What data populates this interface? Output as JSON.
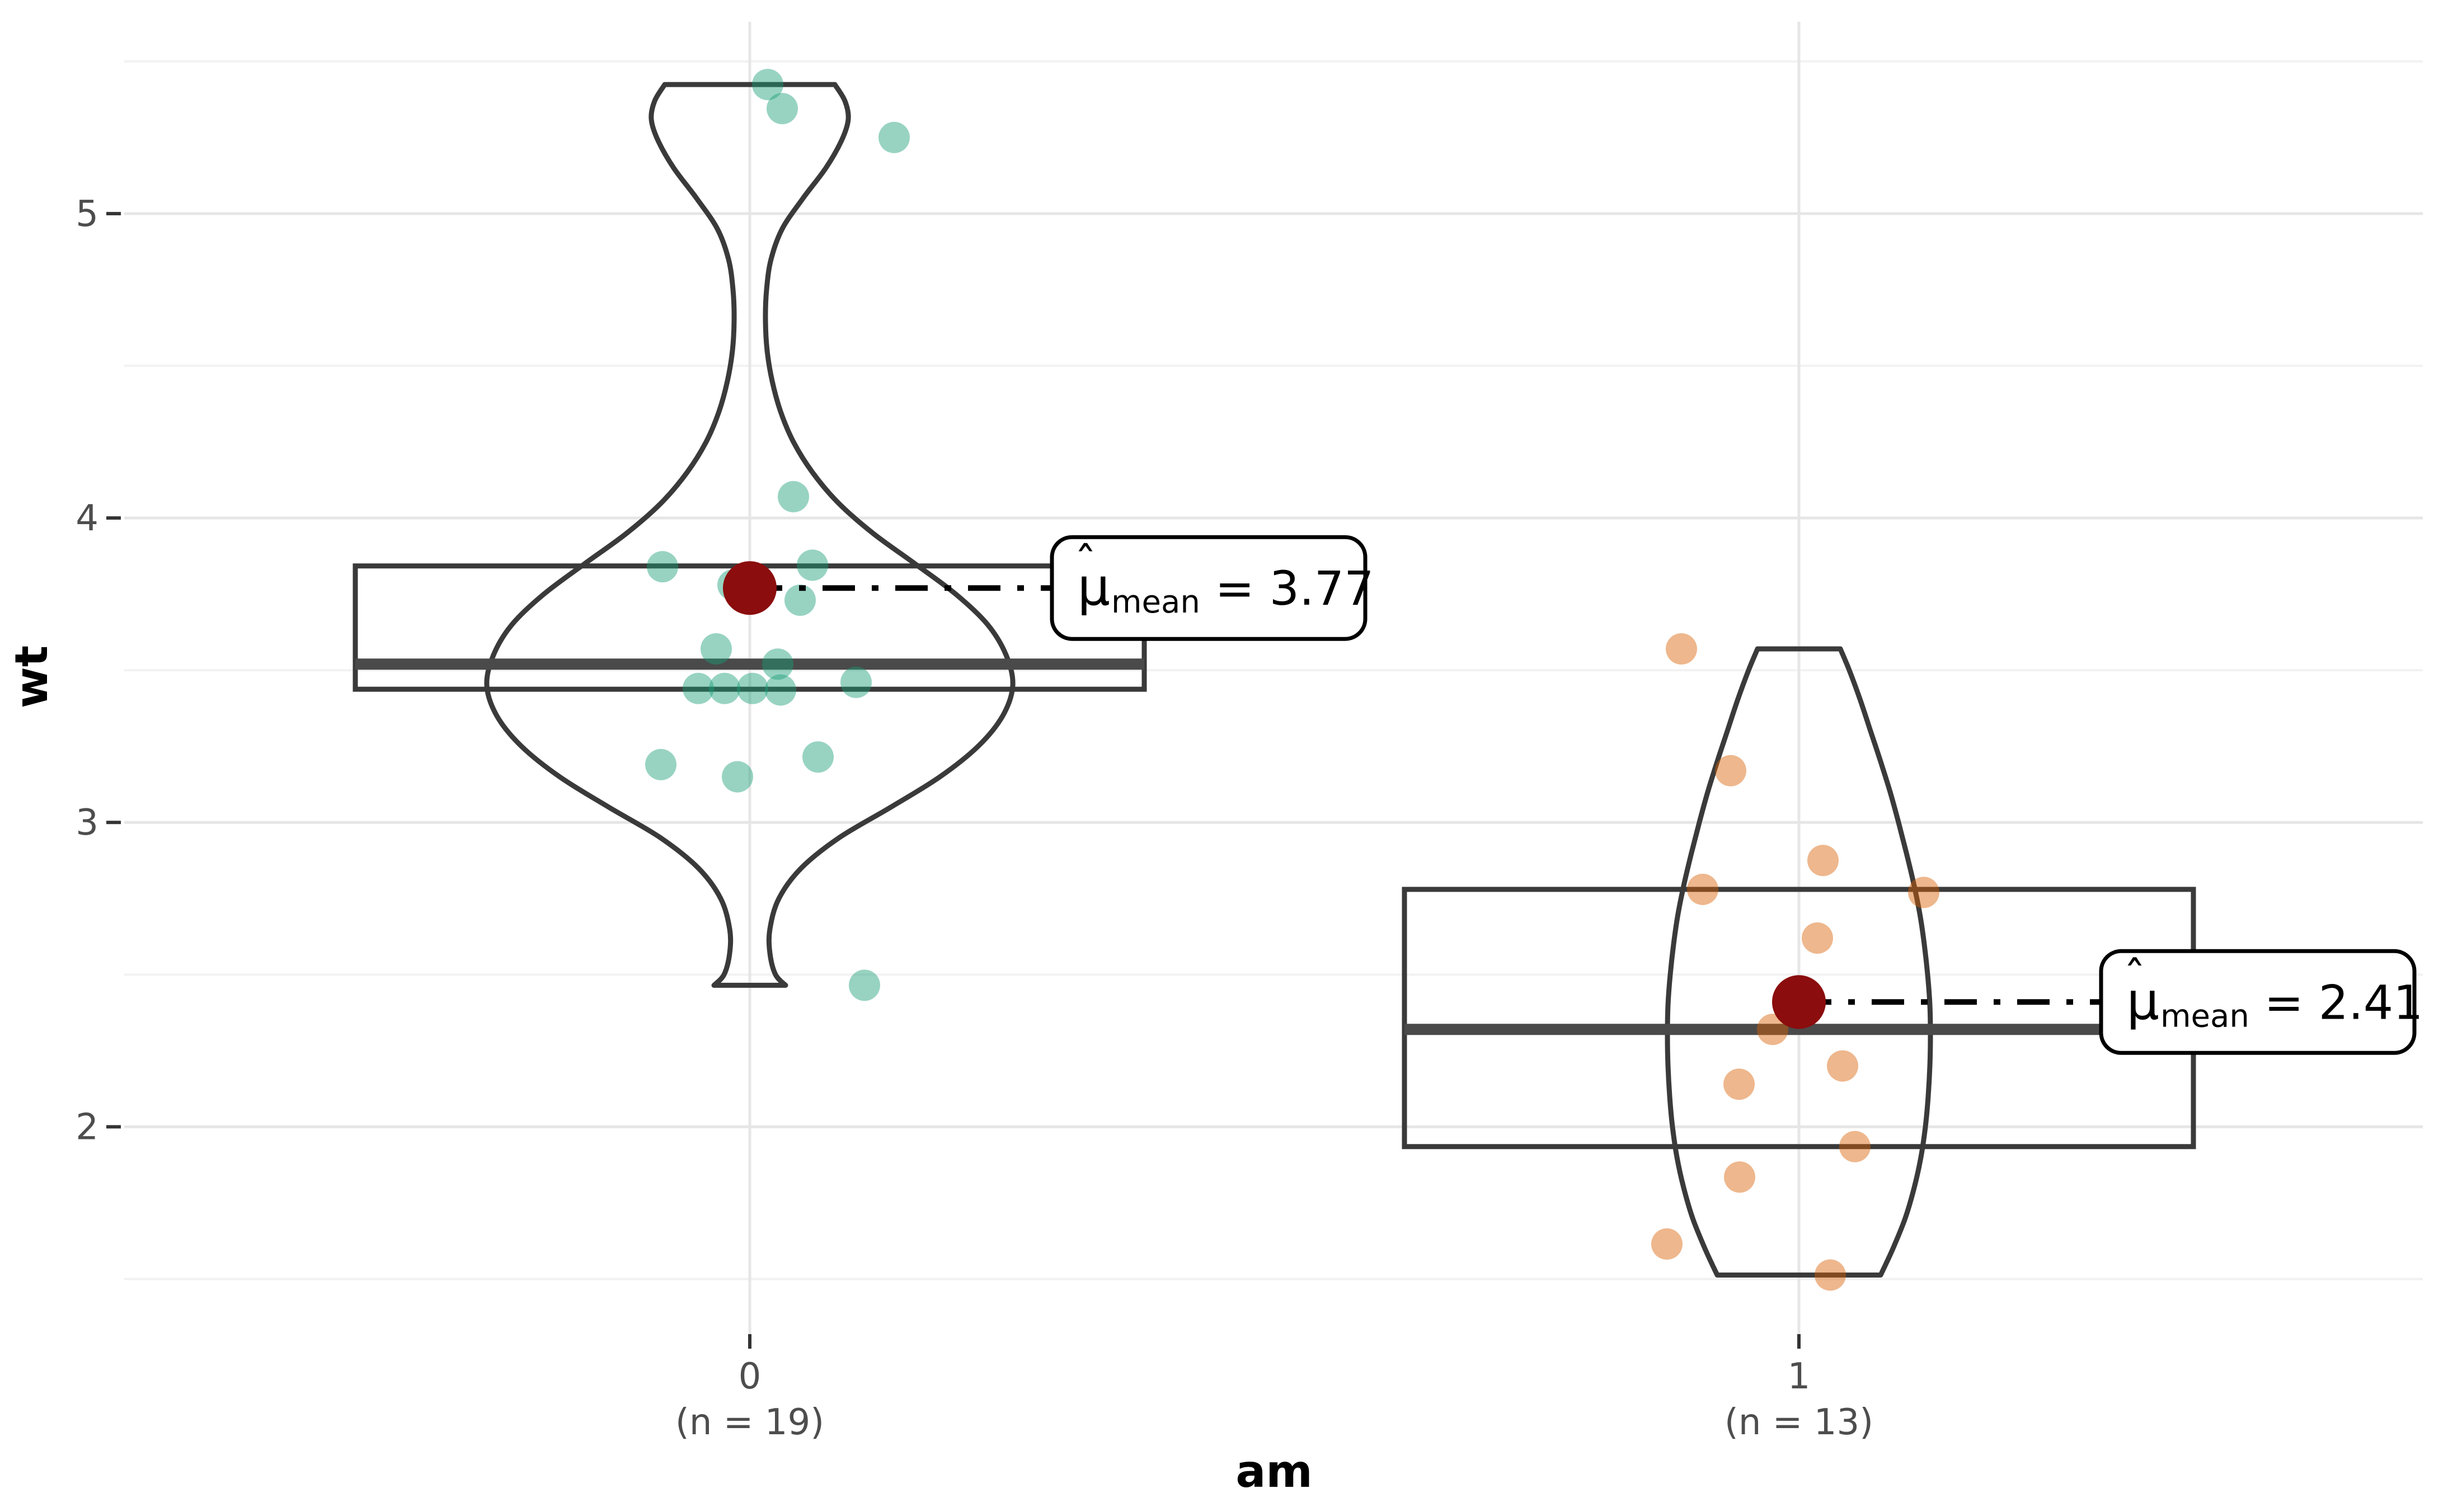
{
  "chart_data": {
    "type": "violin",
    "variant": "violin + boxplot + jittered points with mean labels (ggbetweenstats style)",
    "title": "",
    "xlabel": "am",
    "ylabel": "wt",
    "grid": true,
    "legend": "none",
    "x_categories": [
      {
        "label": "0",
        "sublabel": "(n = 19)"
      },
      {
        "label": "1",
        "sublabel": "(n = 13)"
      }
    ],
    "y_axis": {
      "major_ticks": [
        5,
        4,
        3,
        2
      ],
      "minor_ticks": [
        5.5,
        4.5,
        3.5,
        2.5,
        1.5
      ],
      "ylim": [
        1.319,
        5.63
      ]
    },
    "groups": [
      {
        "category": "0",
        "n": 19,
        "values": [
          5.424,
          5.345,
          5.25,
          4.07,
          3.845,
          3.84,
          3.78,
          3.73,
          3.57,
          3.52,
          3.46,
          3.44,
          3.44,
          3.44,
          3.435,
          3.215,
          3.19,
          3.15,
          2.465
        ],
        "jitter_dx": [
          32,
          58,
          258,
          78,
          112,
          -156,
          -30,
          90,
          -60,
          50,
          190,
          -45,
          5,
          -92,
          55,
          122,
          -159,
          -22,
          205
        ],
        "box": {
          "q1": 3.4375,
          "median": 3.52,
          "q3": 3.8425
        },
        "mean": 3.77,
        "mean_label": {
          "mu": "μ",
          "hat": "ˆ",
          "sub": "mean",
          "rest": " = 3.77"
        },
        "point_color": "#1B9E77",
        "violin_min": 2.465,
        "violin_max": 5.424,
        "violin_profile": [
          [
            5.424,
            152
          ],
          [
            5.37,
            170
          ],
          [
            5.31,
            176
          ],
          [
            5.24,
            164
          ],
          [
            5.15,
            136
          ],
          [
            5.05,
            95
          ],
          [
            4.95,
            58
          ],
          [
            4.85,
            38
          ],
          [
            4.75,
            30
          ],
          [
            4.65,
            28
          ],
          [
            4.55,
            31
          ],
          [
            4.45,
            40
          ],
          [
            4.35,
            55
          ],
          [
            4.25,
            78
          ],
          [
            4.15,
            112
          ],
          [
            4.05,
            158
          ],
          [
            3.95,
            220
          ],
          [
            3.85,
            295
          ],
          [
            3.75,
            368
          ],
          [
            3.65,
            425
          ],
          [
            3.55,
            458
          ],
          [
            3.45,
            470
          ],
          [
            3.35,
            452
          ],
          [
            3.25,
            408
          ],
          [
            3.15,
            340
          ],
          [
            3.05,
            252
          ],
          [
            2.95,
            160
          ],
          [
            2.85,
            92
          ],
          [
            2.75,
            52
          ],
          [
            2.65,
            36
          ],
          [
            2.57,
            36
          ],
          [
            2.5,
            46
          ],
          [
            2.465,
            64
          ]
        ]
      },
      {
        "category": "1",
        "n": 13,
        "values": [
          3.57,
          3.17,
          2.875,
          2.78,
          2.77,
          2.62,
          2.32,
          2.2,
          2.14,
          1.935,
          1.835,
          1.615,
          1.513
        ],
        "jitter_dx": [
          -210,
          -122,
          43,
          -172,
          223,
          33,
          -47,
          78,
          -107,
          100,
          -106,
          -236,
          56
        ],
        "box": {
          "q1": 1.935,
          "median": 2.32,
          "q3": 2.78
        },
        "mean": 2.41,
        "mean_label": {
          "mu": "μ",
          "hat": "ˆ",
          "sub": "mean",
          "rest": " = 2.41"
        },
        "point_color": "#D95F02",
        "violin_min": 1.513,
        "violin_max": 3.57,
        "violin_profile": [
          [
            3.57,
            74
          ],
          [
            3.5,
            90
          ],
          [
            3.4,
            110
          ],
          [
            3.3,
            128
          ],
          [
            3.2,
            146
          ],
          [
            3.1,
            163
          ],
          [
            3.0,
            178
          ],
          [
            2.9,
            192
          ],
          [
            2.8,
            205
          ],
          [
            2.7,
            216
          ],
          [
            2.6,
            224
          ],
          [
            2.5,
            230
          ],
          [
            2.4,
            234
          ],
          [
            2.3,
            235
          ],
          [
            2.2,
            234
          ],
          [
            2.1,
            231
          ],
          [
            2.0,
            226
          ],
          [
            1.9,
            218
          ],
          [
            1.8,
            206
          ],
          [
            1.7,
            190
          ],
          [
            1.6,
            168
          ],
          [
            1.513,
            146
          ]
        ]
      }
    ],
    "style": {
      "mean_point_color": "#8B0D0D",
      "outline_color": "#3A3A3A",
      "median_color": "#4A4A4A",
      "grid_major_color": "#E6E6E6",
      "grid_minor_color": "#F2F2F2",
      "tick_color": "#333333",
      "tick_text_color": "#4D4D4D",
      "axis_title_color": "#000000",
      "point_opacity": 0.45,
      "label_box_fill": "#FFFFFF",
      "label_box_stroke": "#000000",
      "connector_color": "#000000",
      "background": "#FFFFFF"
    }
  }
}
